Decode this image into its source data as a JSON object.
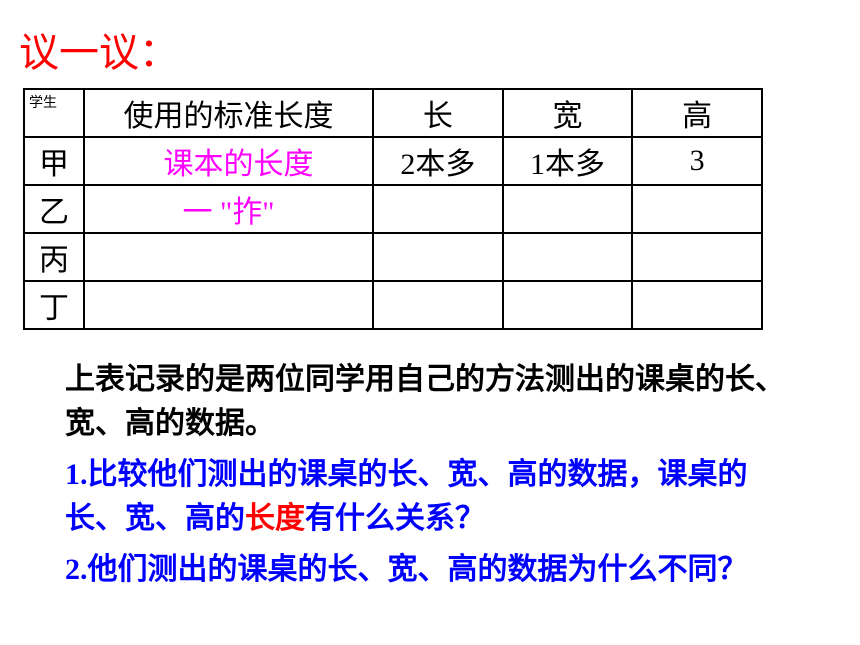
{
  "title": {
    "text": "议一议：",
    "color": "#ff0000"
  },
  "table": {
    "headers": {
      "student": "学生",
      "standard": "使用的标准长度",
      "length": "长",
      "width": "宽",
      "height": "高"
    },
    "rows": [
      {
        "student": "甲",
        "standard": "课本的长度",
        "length": "2本多",
        "width": "1本多",
        "height": "3",
        "standard_color": "#ff00ff"
      },
      {
        "student": "乙",
        "standard": "一 \"拃\"",
        "length": "",
        "width": "",
        "height": "",
        "standard_color": "#ff00ff"
      },
      {
        "student": "丙",
        "standard": "",
        "length": "",
        "width": "",
        "height": ""
      },
      {
        "student": "丁",
        "standard": "",
        "length": "",
        "width": "",
        "height": ""
      }
    ]
  },
  "paragraphs": {
    "intro": {
      "text": "上表记录的是两位同学用自己的方法测出的课桌的长、宽、高的数据。",
      "color": "#000000"
    },
    "q1": {
      "prefix": "1.比较他们测出的课桌的长、宽、高的数据，课桌的长、宽、高的",
      "highlight": "长度",
      "suffix": "有什么关系？",
      "color": "#0000ff",
      "highlight_color": "#ff0000"
    },
    "q2": {
      "text": "2.他们测出的课桌的长、宽、高的数据为什么不同？",
      "color": "#0000ff"
    }
  }
}
